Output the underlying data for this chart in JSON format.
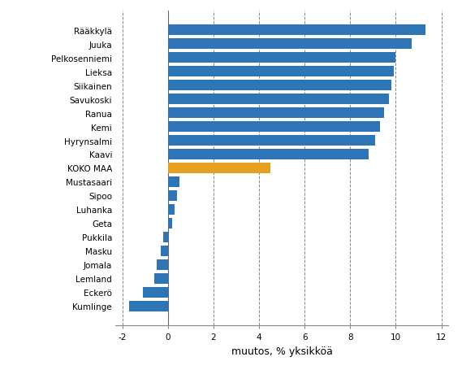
{
  "categories": [
    "Kumlinge",
    "Eckerö",
    "Lemland",
    "Jomala",
    "Masku",
    "Pukkila",
    "Geta",
    "Luhanka",
    "Sipoo",
    "Mustasaari",
    "KOKO MAA",
    "Kaavi",
    "Hyrynsalmi",
    "Kemi",
    "Ranua",
    "Savukoski",
    "Siikainen",
    "Lieksa",
    "Pelkosenniemi",
    "Juuka",
    "Rääkkylä"
  ],
  "values": [
    -1.7,
    -1.1,
    -0.6,
    -0.5,
    -0.3,
    -0.2,
    0.2,
    0.3,
    0.4,
    0.5,
    4.5,
    8.8,
    9.1,
    9.3,
    9.5,
    9.7,
    9.8,
    9.9,
    10.0,
    10.7,
    11.3
  ],
  "bar_colors": [
    "#2e75b6",
    "#2e75b6",
    "#2e75b6",
    "#2e75b6",
    "#2e75b6",
    "#2e75b6",
    "#2e75b6",
    "#2e75b6",
    "#2e75b6",
    "#2e75b6",
    "#e8a020",
    "#2e75b6",
    "#2e75b6",
    "#2e75b6",
    "#2e75b6",
    "#2e75b6",
    "#2e75b6",
    "#2e75b6",
    "#2e75b6",
    "#2e75b6",
    "#2e75b6"
  ],
  "xlabel": "muutos, % yksikköä",
  "xlim": [
    -2.3,
    12.3
  ],
  "xticks": [
    0,
    2,
    4,
    6,
    8,
    10,
    12
  ],
  "xtick_labels": [
    "0",
    "2",
    "4",
    "6",
    "8",
    "10",
    "12"
  ],
  "extra_tick": -2,
  "background_color": "#ffffff",
  "grid_color": "#888888",
  "bar_height": 0.75,
  "label_fontsize": 7.5,
  "xlabel_fontsize": 9
}
